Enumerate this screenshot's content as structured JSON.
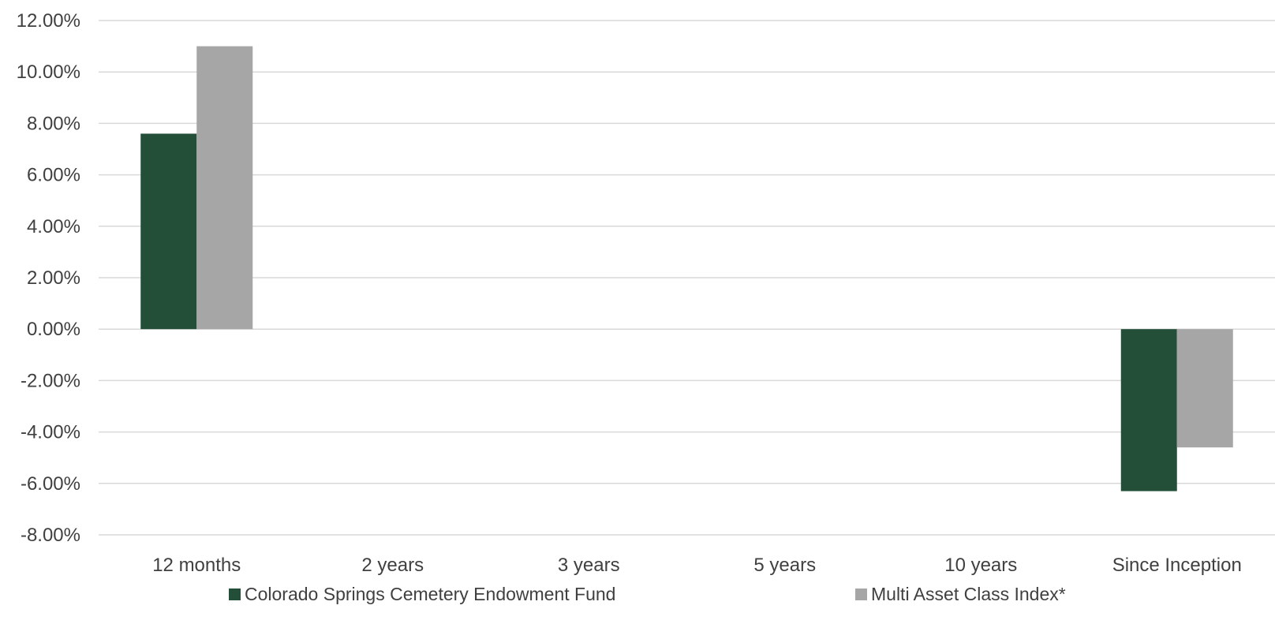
{
  "chart_data": {
    "type": "bar",
    "categories": [
      "12 months",
      "2 years",
      "3 years",
      "5 years",
      "10 years",
      "Since Inception"
    ],
    "series": [
      {
        "name": "Colorado Springs Cemetery Endowment Fund",
        "color": "#234f38",
        "values": [
          7.6,
          null,
          null,
          null,
          null,
          -6.3
        ]
      },
      {
        "name": "Multi Asset Class Index*",
        "color": "#a6a6a6",
        "values": [
          11.0,
          null,
          null,
          null,
          null,
          -4.6
        ]
      }
    ],
    "title": "",
    "xlabel": "",
    "ylabel": "",
    "ylim": [
      -8,
      12
    ],
    "yticks": [
      12,
      10,
      8,
      6,
      4,
      2,
      0,
      -2,
      -4,
      -6,
      -8
    ],
    "ytick_labels": [
      "12.00%",
      "10.00%",
      "8.00%",
      "6.00%",
      "4.00%",
      "2.00%",
      "0.00%",
      "-2.00%",
      "-4.00%",
      "-6.00%",
      "-8.00%"
    ],
    "grid": true,
    "legend_position": "bottom"
  }
}
